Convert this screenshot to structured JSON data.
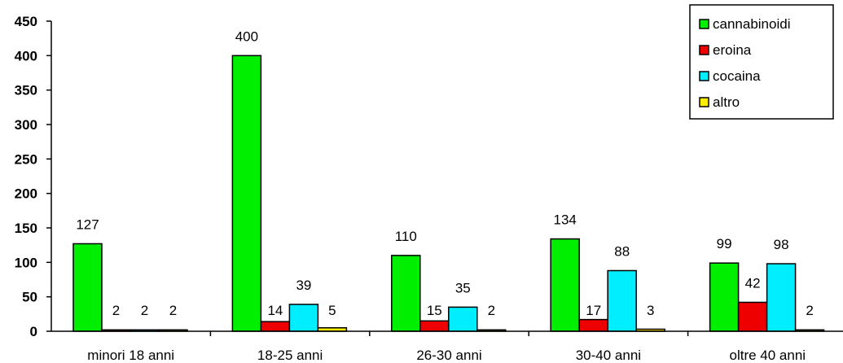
{
  "chart_data": {
    "type": "bar",
    "categories": [
      "minori 18 anni",
      "18-25 anni",
      "26-30 anni",
      "30-40 anni",
      "oltre 40 anni"
    ],
    "series": [
      {
        "name": "cannabinoidi",
        "color": "#00ee00",
        "values": [
          127,
          400,
          110,
          134,
          99
        ]
      },
      {
        "name": "eroina",
        "color": "#ee0000",
        "values": [
          2,
          14,
          15,
          17,
          42
        ]
      },
      {
        "name": "cocaina",
        "color": "#00eeff",
        "values": [
          2,
          39,
          35,
          88,
          98
        ]
      },
      {
        "name": "altro",
        "color": "#ffee00",
        "values": [
          2,
          5,
          2,
          3,
          2
        ]
      }
    ],
    "y_ticks": [
      "0",
      "50",
      "100",
      "150",
      "200",
      "250",
      "300",
      "350",
      "400",
      "450"
    ],
    "ylim": [
      0,
      450
    ],
    "grid": false,
    "legend_position": "top-right",
    "title": "",
    "xlabel": "",
    "ylabel": ""
  }
}
